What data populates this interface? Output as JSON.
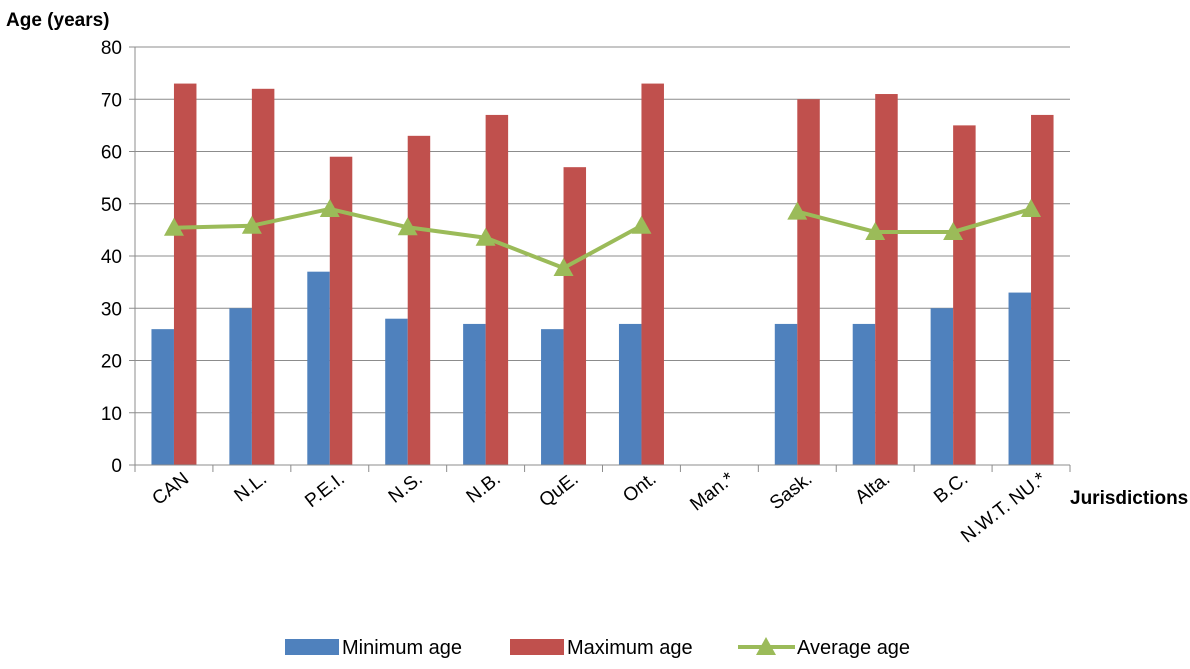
{
  "chart_data": {
    "type": "bar",
    "ylabel": "Age (years)",
    "xlabel": "Jurisdictions",
    "ylim": [
      0,
      80
    ],
    "ytick_step": 10,
    "grid": true,
    "legend_position": "bottom",
    "categories": [
      "CAN",
      "N.L.",
      "P.E.I.",
      "N.S.",
      "N.B.",
      "QuE.",
      "Ont.",
      "Man.*",
      "Sask.",
      "Alta.",
      "B.C.",
      "N.W.T. NU.*"
    ],
    "series": [
      {
        "name": "Minimum age",
        "type": "bar",
        "color": "#4f81bd",
        "values": [
          26,
          30,
          37,
          28,
          27,
          26,
          27,
          null,
          27,
          27,
          30,
          33
        ]
      },
      {
        "name": "Maximum age",
        "type": "bar",
        "color": "#c0504d",
        "values": [
          73,
          72,
          59,
          63,
          67,
          57,
          73,
          null,
          70,
          71,
          65,
          67
        ]
      },
      {
        "name": "Average age",
        "type": "line",
        "marker": "triangle",
        "color": "#9bbb59",
        "values": [
          45.4,
          45.8,
          49,
          45.5,
          43.5,
          37.7,
          45.8,
          null,
          48.5,
          44.6,
          44.6,
          49
        ]
      }
    ]
  }
}
